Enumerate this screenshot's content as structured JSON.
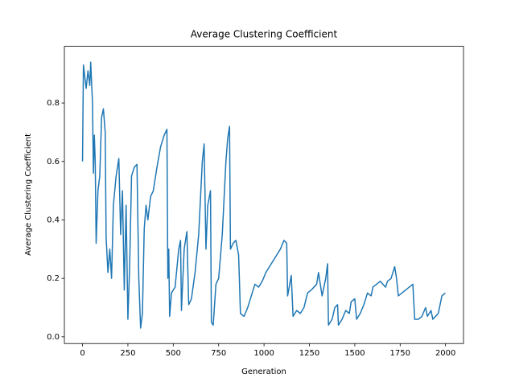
{
  "chart_data": {
    "type": "line",
    "title": "Average Clustering Coefficient",
    "x_label": "Generation",
    "y_label": "Average Clustering Coefficient",
    "color": "#1f77b4",
    "grid": false,
    "xlim": [
      -100,
      2099
    ],
    "ylim": [
      -0.023,
      0.994
    ],
    "xticks": [
      0,
      250,
      500,
      750,
      1000,
      1250,
      1500,
      1750,
      2000
    ],
    "yticks": [
      {
        "value": 0,
        "label": "0.0"
      },
      0.2,
      0.4,
      0.6,
      0.8
    ],
    "x": [
      0,
      5,
      20,
      30,
      40,
      45,
      55,
      60,
      65,
      70,
      75,
      85,
      95,
      105,
      115,
      125,
      130,
      140,
      150,
      160,
      170,
      185,
      200,
      210,
      220,
      230,
      240,
      250,
      260,
      270,
      285,
      300,
      310,
      320,
      330,
      340,
      350,
      360,
      375,
      390,
      410,
      430,
      450,
      465,
      470,
      475,
      480,
      490,
      510,
      530,
      540,
      545,
      560,
      575,
      585,
      600,
      620,
      640,
      660,
      670,
      680,
      690,
      705,
      710,
      720,
      735,
      750,
      770,
      790,
      800,
      810,
      815,
      830,
      845,
      860,
      870,
      890,
      910,
      930,
      950,
      970,
      990,
      1010,
      1030,
      1060,
      1090,
      1110,
      1125,
      1130,
      1150,
      1160,
      1180,
      1200,
      1220,
      1240,
      1260,
      1290,
      1300,
      1320,
      1340,
      1350,
      1355,
      1375,
      1390,
      1405,
      1410,
      1430,
      1450,
      1470,
      1480,
      1500,
      1510,
      1530,
      1550,
      1570,
      1590,
      1600,
      1620,
      1640,
      1670,
      1680,
      1700,
      1720,
      1730,
      1740,
      1760,
      1780,
      1800,
      1820,
      1830,
      1850,
      1870,
      1890,
      1900,
      1920,
      1930,
      1960,
      1980,
      1999
    ],
    "values": [
      0.6,
      0.93,
      0.85,
      0.91,
      0.86,
      0.94,
      0.8,
      0.56,
      0.69,
      0.6,
      0.32,
      0.5,
      0.55,
      0.75,
      0.78,
      0.7,
      0.34,
      0.22,
      0.3,
      0.2,
      0.45,
      0.55,
      0.61,
      0.35,
      0.5,
      0.16,
      0.45,
      0.06,
      0.25,
      0.55,
      0.58,
      0.59,
      0.2,
      0.03,
      0.08,
      0.37,
      0.45,
      0.4,
      0.48,
      0.5,
      0.58,
      0.65,
      0.69,
      0.71,
      0.2,
      0.3,
      0.07,
      0.15,
      0.17,
      0.3,
      0.33,
      0.09,
      0.3,
      0.36,
      0.11,
      0.13,
      0.22,
      0.35,
      0.6,
      0.66,
      0.3,
      0.45,
      0.5,
      0.05,
      0.04,
      0.18,
      0.2,
      0.35,
      0.6,
      0.68,
      0.72,
      0.3,
      0.32,
      0.33,
      0.28,
      0.08,
      0.07,
      0.1,
      0.14,
      0.18,
      0.17,
      0.19,
      0.22,
      0.24,
      0.27,
      0.3,
      0.33,
      0.32,
      0.14,
      0.21,
      0.07,
      0.09,
      0.08,
      0.1,
      0.15,
      0.16,
      0.18,
      0.22,
      0.14,
      0.2,
      0.25,
      0.04,
      0.06,
      0.1,
      0.11,
      0.04,
      0.06,
      0.09,
      0.08,
      0.12,
      0.13,
      0.06,
      0.08,
      0.11,
      0.15,
      0.14,
      0.17,
      0.18,
      0.19,
      0.17,
      0.19,
      0.2,
      0.24,
      0.2,
      0.14,
      0.15,
      0.16,
      0.17,
      0.18,
      0.06,
      0.06,
      0.07,
      0.1,
      0.07,
      0.09,
      0.06,
      0.08,
      0.14,
      0.15
    ]
  }
}
